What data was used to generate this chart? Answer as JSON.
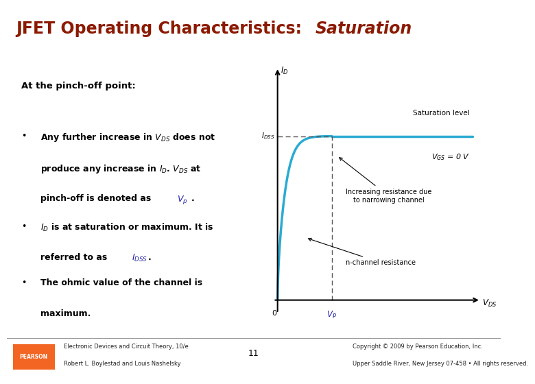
{
  "title_part1": "JFET Operating Characteristics: ",
  "title_part2": "Saturation",
  "title_color": "#8B1A00",
  "bg_color": "#FFFFFF",
  "footer_left1": "Electronic Devices and Circuit Theory, 10/e",
  "footer_left2": "Robert L. Boylestad and Louis Nashelsky",
  "footer_center": "11",
  "footer_right1": "Copyright © 2009 by Pearson Education, Inc.",
  "footer_right2": "Upper Saddle River, New Jersey 07-458 • All rights reserved.",
  "curve_color": "#2AABD2",
  "dashed_color": "#555555",
  "vp_label_color": "#2222AA",
  "idss_label_color": "#2222AA",
  "pearson_orange": "#F26522"
}
